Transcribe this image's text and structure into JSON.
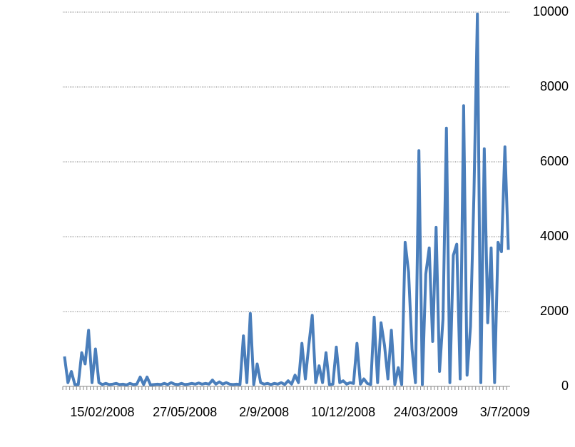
{
  "chart_data": {
    "type": "line",
    "color": "#4a7ebb",
    "grid": true,
    "y_axis_side": "right",
    "categories": [
      null,
      null,
      null,
      null,
      null,
      null,
      null,
      null,
      null,
      null,
      null,
      "15/02/2008",
      null,
      null,
      null,
      null,
      null,
      null,
      null,
      null,
      null,
      null,
      null,
      null,
      null,
      null,
      null,
      null,
      null,
      null,
      null,
      null,
      null,
      null,
      null,
      "27/05/2008",
      null,
      null,
      null,
      null,
      null,
      null,
      null,
      null,
      null,
      null,
      null,
      null,
      null,
      null,
      null,
      null,
      null,
      null,
      null,
      null,
      null,
      null,
      "2/9/2008",
      null,
      null,
      null,
      null,
      null,
      null,
      null,
      null,
      null,
      null,
      null,
      null,
      null,
      null,
      null,
      null,
      null,
      null,
      null,
      null,
      null,
      null,
      "10/12/2008",
      null,
      null,
      null,
      null,
      null,
      null,
      null,
      null,
      null,
      null,
      null,
      null,
      null,
      null,
      null,
      null,
      null,
      null,
      null,
      null,
      null,
      null,
      null,
      "24/03/2009",
      null,
      null,
      null,
      null,
      null,
      null,
      null,
      null,
      null,
      null,
      null,
      null,
      null,
      null,
      null,
      null,
      null,
      null,
      null,
      null,
      null,
      null,
      "3/7/2009",
      null
    ],
    "values": [
      800,
      100,
      400,
      50,
      50,
      900,
      600,
      1500,
      100,
      1000,
      100,
      50,
      80,
      50,
      60,
      80,
      50,
      60,
      40,
      80,
      50,
      60,
      250,
      50,
      250,
      40,
      50,
      60,
      50,
      80,
      50,
      100,
      60,
      50,
      80,
      50,
      60,
      80,
      60,
      90,
      60,
      80,
      60,
      170,
      60,
      120,
      60,
      100,
      60,
      50,
      60,
      50,
      1350,
      100,
      1950,
      50,
      600,
      100,
      60,
      80,
      50,
      80,
      60,
      100,
      50,
      150,
      60,
      300,
      100,
      1150,
      200,
      1100,
      1900,
      100,
      550,
      100,
      900,
      50,
      60,
      1050,
      100,
      150,
      60,
      100,
      80,
      1150,
      60,
      200,
      80,
      50,
      1850,
      100,
      1700,
      1100,
      200,
      1500,
      50,
      500,
      50,
      3850,
      3050,
      1000,
      100,
      6300,
      50,
      3000,
      3700,
      1200,
      4250,
      400,
      1800,
      6900,
      100,
      3500,
      3800,
      200,
      7500,
      300,
      1600,
      5150,
      9950,
      100,
      6350,
      1700,
      3700,
      100,
      3850,
      3600,
      6400,
      3650
    ],
    "ylim": [
      0,
      10000
    ],
    "yticks": [
      0,
      2000,
      4000,
      6000,
      8000,
      10000
    ]
  }
}
